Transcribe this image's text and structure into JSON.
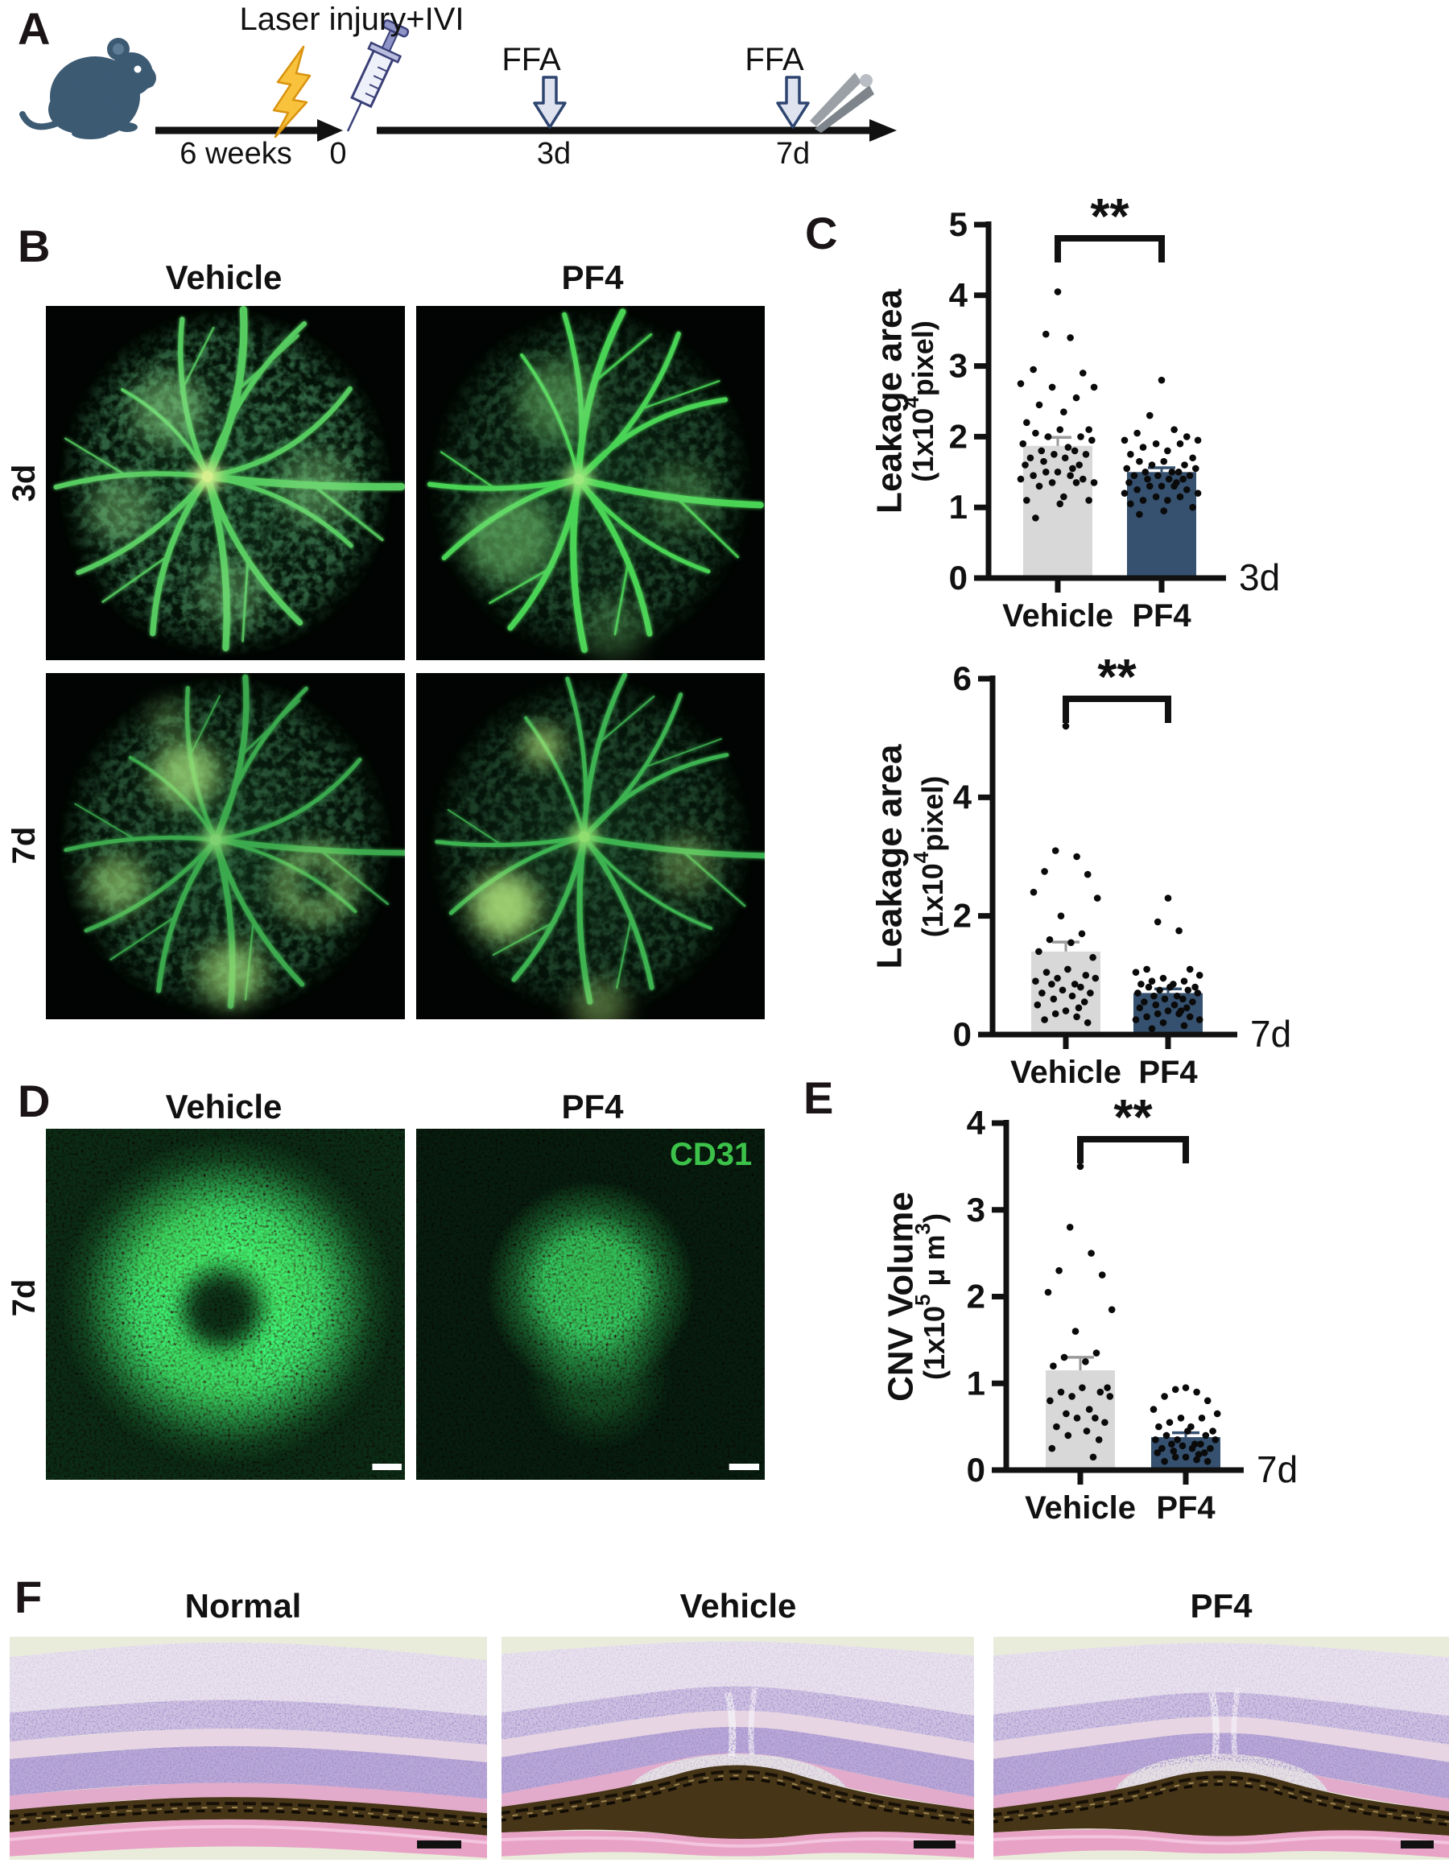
{
  "figure": {
    "panel_a": {
      "label": "A",
      "title": "Laser injury+IVI",
      "timeline_start": "6 weeks",
      "timeline_zero": "0",
      "ffa_label_1": "FFA",
      "ffa_label_2": "FFA",
      "timepoint_3d": "3d",
      "timepoint_7d": "7d"
    },
    "panel_b": {
      "label": "B",
      "col_vehicle": "Vehicle",
      "col_pf4": "PF4",
      "row_3d": "3d",
      "row_7d": "7d"
    },
    "panel_c": {
      "label": "C"
    },
    "panel_d": {
      "label": "D",
      "col_vehicle": "Vehicle",
      "col_pf4": "PF4",
      "row_7d": "7d",
      "stain_label": "CD31"
    },
    "panel_e": {
      "label": "E"
    },
    "panel_f": {
      "label": "F",
      "col_normal": "Normal",
      "col_vehicle": "Vehicle",
      "col_pf4": "PF4"
    }
  },
  "colors": {
    "bar_vehicle": "#d8d8d8",
    "bar_pf4": "#35516f",
    "dot": "#0a0a0a",
    "stain_green": "#3cc24a",
    "mouse_blue": "#3d5a73"
  },
  "chart_data": [
    {
      "id": "leakage-area-3d",
      "type": "bar",
      "categories": [
        "Vehicle",
        "PF4"
      ],
      "bar_colors": [
        "#d8d8d8",
        "#35516f"
      ],
      "means": [
        1.87,
        1.5
      ],
      "sem": [
        0.12,
        0.06
      ],
      "points": [
        [
          4.05,
          3.45,
          3.4,
          2.95,
          2.9,
          2.75,
          2.7,
          2.7,
          2.55,
          2.45,
          2.35,
          2.2,
          2.1,
          2.1,
          2.05,
          2.0,
          2.0,
          1.95,
          1.9,
          1.85,
          1.8,
          1.8,
          1.75,
          1.75,
          1.7,
          1.7,
          1.65,
          1.6,
          1.6,
          1.55,
          1.5,
          1.5,
          1.45,
          1.45,
          1.4,
          1.4,
          1.35,
          1.35,
          1.35,
          1.3,
          1.15,
          1.1,
          1.1,
          1.05,
          0.85
        ],
        [
          2.8,
          2.3,
          2.1,
          2.05,
          2.0,
          1.95,
          1.95,
          1.9,
          1.9,
          1.85,
          1.8,
          1.75,
          1.7,
          1.65,
          1.65,
          1.6,
          1.6,
          1.55,
          1.55,
          1.5,
          1.5,
          1.5,
          1.45,
          1.45,
          1.45,
          1.4,
          1.4,
          1.4,
          1.35,
          1.35,
          1.3,
          1.3,
          1.3,
          1.25,
          1.25,
          1.2,
          1.2,
          1.15,
          1.15,
          1.1,
          1.1,
          1.05,
          1.0,
          0.95,
          0.9
        ]
      ],
      "ylabel": "Leakage area",
      "ylabel_sub": "(1x10^4^pixel)",
      "ylim": [
        0,
        5
      ],
      "yticks": [
        0,
        1,
        2,
        3,
        4,
        5
      ],
      "significance": "**",
      "time_label": "3d",
      "grid": false,
      "legend": "none"
    },
    {
      "id": "leakage-area-7d",
      "type": "bar",
      "categories": [
        "Vehicle",
        "PF4"
      ],
      "bar_colors": [
        "#d8d8d8",
        "#35516f"
      ],
      "means": [
        1.4,
        0.7
      ],
      "sem": [
        0.16,
        0.07
      ],
      "points": [
        [
          5.2,
          3.1,
          3.0,
          2.75,
          2.7,
          2.4,
          2.3,
          2.0,
          1.7,
          1.6,
          1.55,
          1.4,
          1.3,
          1.1,
          1.05,
          1.0,
          0.95,
          0.95,
          0.9,
          0.85,
          0.85,
          0.8,
          0.75,
          0.7,
          0.7,
          0.65,
          0.6,
          0.55,
          0.5,
          0.45,
          0.4,
          0.35,
          0.3,
          0.25,
          0.2
        ],
        [
          2.3,
          1.9,
          1.75,
          1.1,
          1.1,
          1.05,
          1.0,
          0.95,
          0.9,
          0.9,
          0.85,
          0.85,
          0.8,
          0.8,
          0.8,
          0.75,
          0.75,
          0.7,
          0.7,
          0.65,
          0.65,
          0.6,
          0.6,
          0.55,
          0.55,
          0.5,
          0.5,
          0.45,
          0.45,
          0.4,
          0.4,
          0.35,
          0.35,
          0.3,
          0.3,
          0.25,
          0.25,
          0.2,
          0.15,
          0.1
        ]
      ],
      "ylabel": "Leakage area",
      "ylabel_sub": "(1x10^4^pixel)",
      "ylim": [
        0,
        6
      ],
      "yticks": [
        0,
        2,
        4,
        6
      ],
      "significance": "**",
      "time_label": "7d",
      "grid": false,
      "legend": "none"
    },
    {
      "id": "cnv-volume-7d",
      "type": "bar",
      "categories": [
        "Vehicle",
        "PF4"
      ],
      "bar_colors": [
        "#d8d8d8",
        "#35516f"
      ],
      "means": [
        1.15,
        0.38
      ],
      "sem": [
        0.15,
        0.05
      ],
      "points": [
        [
          3.5,
          2.8,
          2.5,
          2.3,
          2.25,
          2.05,
          1.85,
          1.6,
          1.35,
          1.3,
          1.25,
          1.2,
          0.95,
          0.95,
          0.9,
          0.9,
          0.85,
          0.85,
          0.8,
          0.7,
          0.65,
          0.6,
          0.6,
          0.55,
          0.5,
          0.45,
          0.4,
          0.35,
          0.25,
          0.15
        ],
        [
          0.95,
          0.93,
          0.9,
          0.85,
          0.8,
          0.7,
          0.65,
          0.6,
          0.6,
          0.55,
          0.5,
          0.5,
          0.45,
          0.45,
          0.4,
          0.4,
          0.35,
          0.35,
          0.35,
          0.3,
          0.3,
          0.3,
          0.28,
          0.25,
          0.25,
          0.25,
          0.22,
          0.2,
          0.2,
          0.18,
          0.15,
          0.15,
          0.12,
          0.1,
          0.1
        ]
      ],
      "ylabel": "CNV Volume",
      "ylabel_sub": "(1x10^5^ μ m^3^)",
      "ylim": [
        0,
        4
      ],
      "yticks": [
        0,
        1,
        2,
        3,
        4
      ],
      "significance": "**",
      "time_label": "7d",
      "grid": false,
      "legend": "none"
    }
  ]
}
